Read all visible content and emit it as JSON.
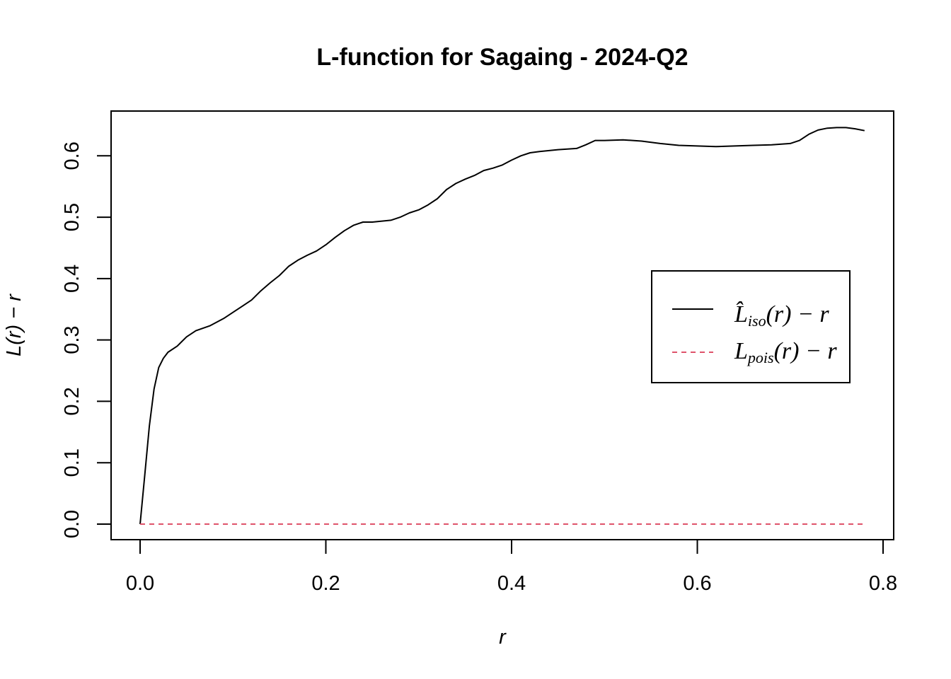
{
  "chart_data": {
    "type": "line",
    "title": "L-function for Sagaing - 2024-Q2",
    "xlabel": "r",
    "ylabel": "L(r) − r",
    "xlim": [
      0.0,
      0.8
    ],
    "ylim": [
      0.0,
      0.65
    ],
    "x_ticks": [
      "0.0",
      "0.2",
      "0.4",
      "0.6",
      "0.8"
    ],
    "y_ticks": [
      "0.0",
      "0.1",
      "0.2",
      "0.3",
      "0.4",
      "0.5",
      "0.6"
    ],
    "legend_position": "right",
    "legend": [
      {
        "main": "L̂",
        "sub": "iso",
        "rest": "(r) − r"
      },
      {
        "main": "L",
        "sub": "pois",
        "rest": "(r) − r"
      }
    ],
    "series": [
      {
        "style": "solid",
        "color": "#000000",
        "x": [
          0,
          0.005,
          0.01,
          0.015,
          0.02,
          0.025,
          0.03,
          0.04,
          0.05,
          0.06,
          0.075,
          0.09,
          0.1,
          0.11,
          0.12,
          0.13,
          0.14,
          0.15,
          0.16,
          0.17,
          0.18,
          0.19,
          0.2,
          0.21,
          0.22,
          0.23,
          0.24,
          0.25,
          0.27,
          0.28,
          0.29,
          0.3,
          0.31,
          0.32,
          0.33,
          0.34,
          0.35,
          0.36,
          0.37,
          0.38,
          0.39,
          0.4,
          0.41,
          0.42,
          0.43,
          0.45,
          0.47,
          0.48,
          0.49,
          0.5,
          0.52,
          0.54,
          0.56,
          0.58,
          0.6,
          0.62,
          0.64,
          0.66,
          0.68,
          0.7,
          0.71,
          0.72,
          0.73,
          0.74,
          0.75,
          0.76,
          0.77,
          0.78
        ],
        "y": [
          0.0,
          0.08,
          0.16,
          0.22,
          0.255,
          0.27,
          0.28,
          0.29,
          0.305,
          0.315,
          0.323,
          0.335,
          0.345,
          0.355,
          0.365,
          0.38,
          0.393,
          0.405,
          0.42,
          0.43,
          0.438,
          0.445,
          0.455,
          0.467,
          0.478,
          0.487,
          0.492,
          0.492,
          0.495,
          0.5,
          0.507,
          0.512,
          0.52,
          0.53,
          0.545,
          0.555,
          0.562,
          0.568,
          0.576,
          0.58,
          0.585,
          0.593,
          0.6,
          0.605,
          0.607,
          0.61,
          0.612,
          0.618,
          0.625,
          0.625,
          0.626,
          0.624,
          0.62,
          0.617,
          0.616,
          0.615,
          0.616,
          0.617,
          0.618,
          0.62,
          0.625,
          0.635,
          0.642,
          0.645,
          0.646,
          0.646,
          0.644,
          0.641
        ]
      },
      {
        "style": "dashed",
        "color": "#DF536B",
        "x": [
          0,
          0.78
        ],
        "y": [
          0.0,
          0.0
        ]
      }
    ]
  }
}
